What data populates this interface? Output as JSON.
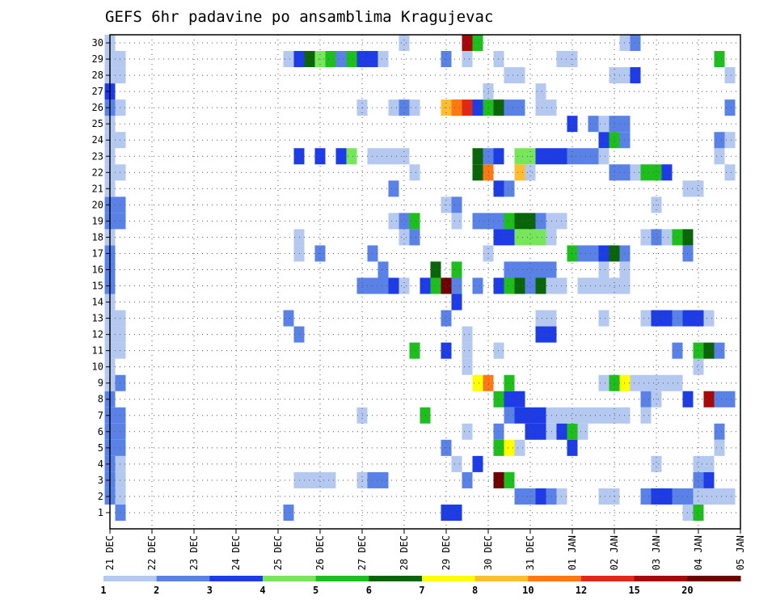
{
  "chart_data": {
    "type": "heatmap",
    "title": "GEFS 6hr padavine po ansamblima Kragujevac",
    "y_categories": [
      "1",
      "2",
      "3",
      "4",
      "5",
      "6",
      "7",
      "8",
      "9",
      "10",
      "11",
      "12",
      "13",
      "14",
      "15",
      "16",
      "17",
      "18",
      "19",
      "20",
      "21",
      "22",
      "23",
      "24",
      "25",
      "26",
      "27",
      "28",
      "29",
      "30"
    ],
    "x_tick_labels": [
      "21 DEC",
      "22 DEC",
      "23 DEC",
      "24 DEC",
      "25 DEC",
      "26 DEC",
      "27 DEC",
      "28 DEC",
      "29 DEC",
      "30 DEC",
      "31 DEC",
      "01 JAN",
      "02 JAN",
      "03 JAN",
      "04 JAN",
      "05 JAN"
    ],
    "steps_per_day": 4,
    "total_steps": 61,
    "grid": true,
    "legend_placement": "bottom",
    "legend": {
      "labels": [
        "1",
        "2",
        "3",
        "4",
        "5",
        "6",
        "7",
        "8",
        "10",
        "12",
        "15",
        "20"
      ],
      "colors": [
        "#b4c8f0",
        "#5a82e6",
        "#1e3ce6",
        "#78e65a",
        "#1ebe1e",
        "#0a640a",
        "#ffff00",
        "#ffbe32",
        "#ff7814",
        "#e12814",
        "#a50a0a",
        "#6e0000"
      ]
    },
    "cells": [
      [
        0,
        2,
        2
      ],
      [
        0,
        3,
        2
      ],
      [
        0,
        4,
        2
      ],
      [
        0,
        5,
        2
      ],
      [
        0,
        6,
        2
      ],
      [
        0,
        7,
        2
      ],
      [
        0,
        8,
        2
      ],
      [
        0,
        9,
        1
      ],
      [
        0,
        10,
        1
      ],
      [
        0,
        11,
        1
      ],
      [
        0,
        12,
        1
      ],
      [
        0,
        13,
        1
      ],
      [
        0,
        14,
        1
      ],
      [
        0,
        15,
        2
      ],
      [
        0,
        16,
        2
      ],
      [
        0,
        17,
        2
      ],
      [
        0,
        18,
        1
      ],
      [
        0,
        19,
        2
      ],
      [
        0,
        20,
        2
      ],
      [
        0,
        21,
        1
      ],
      [
        0,
        22,
        1
      ],
      [
        0,
        23,
        1
      ],
      [
        0,
        24,
        1
      ],
      [
        0,
        25,
        1
      ],
      [
        0,
        26,
        2
      ],
      [
        0,
        27,
        3
      ],
      [
        0,
        28,
        1
      ],
      [
        0,
        29,
        1
      ],
      [
        0,
        30,
        1
      ],
      [
        1,
        1,
        2
      ],
      [
        1,
        2,
        1
      ],
      [
        1,
        3,
        1
      ],
      [
        1,
        4,
        1
      ],
      [
        1,
        5,
        2
      ],
      [
        1,
        6,
        2
      ],
      [
        1,
        7,
        2
      ],
      [
        1,
        9,
        2
      ],
      [
        1,
        11,
        1
      ],
      [
        1,
        12,
        1
      ],
      [
        1,
        13,
        1
      ],
      [
        1,
        19,
        2
      ],
      [
        1,
        20,
        2
      ],
      [
        1,
        22,
        1
      ],
      [
        1,
        24,
        1
      ],
      [
        1,
        26,
        1
      ],
      [
        1,
        28,
        1
      ],
      [
        1,
        29,
        1
      ],
      [
        17,
        1,
        2
      ],
      [
        17,
        13,
        2
      ],
      [
        17,
        29,
        1
      ],
      [
        18,
        3,
        1
      ],
      [
        18,
        12,
        2
      ],
      [
        18,
        17,
        1
      ],
      [
        18,
        18,
        1
      ],
      [
        18,
        29,
        3
      ],
      [
        18,
        23,
        3
      ],
      [
        19,
        3,
        1
      ],
      [
        19,
        29,
        6
      ],
      [
        20,
        3,
        1
      ],
      [
        20,
        29,
        4
      ],
      [
        20,
        17,
        2
      ],
      [
        20,
        23,
        3
      ],
      [
        21,
        29,
        5
      ],
      [
        21,
        3,
        1
      ],
      [
        22,
        29,
        2
      ],
      [
        22,
        23,
        3
      ],
      [
        23,
        29,
        5
      ],
      [
        23,
        23,
        4
      ],
      [
        24,
        3,
        1
      ],
      [
        24,
        7,
        1
      ],
      [
        24,
        15,
        2
      ],
      [
        24,
        29,
        3
      ],
      [
        24,
        26,
        1
      ],
      [
        25,
        3,
        2
      ],
      [
        25,
        15,
        2
      ],
      [
        25,
        17,
        2
      ],
      [
        25,
        29,
        3
      ],
      [
        25,
        23,
        1
      ],
      [
        26,
        3,
        2
      ],
      [
        26,
        15,
        2
      ],
      [
        26,
        29,
        1
      ],
      [
        26,
        23,
        1
      ],
      [
        26,
        16,
        2
      ],
      [
        27,
        15,
        3
      ],
      [
        27,
        26,
        1
      ],
      [
        27,
        23,
        1
      ],
      [
        27,
        21,
        2
      ],
      [
        27,
        19,
        1
      ],
      [
        28,
        26,
        2
      ],
      [
        28,
        18,
        1
      ],
      [
        28,
        30,
        1
      ],
      [
        28,
        15,
        1
      ],
      [
        28,
        19,
        2
      ],
      [
        28,
        23,
        1
      ],
      [
        29,
        22,
        1
      ],
      [
        29,
        18,
        2
      ],
      [
        29,
        19,
        5
      ],
      [
        29,
        11,
        5
      ],
      [
        29,
        26,
        1
      ],
      [
        30,
        15,
        3
      ],
      [
        30,
        7,
        5
      ],
      [
        31,
        15,
        5
      ],
      [
        31,
        16,
        6
      ],
      [
        32,
        15,
        12
      ],
      [
        32,
        1,
        3
      ],
      [
        32,
        5,
        2
      ],
      [
        32,
        13,
        2
      ],
      [
        32,
        26,
        8
      ],
      [
        32,
        11,
        3
      ],
      [
        32,
        20,
        1
      ],
      [
        32,
        29,
        2
      ],
      [
        33,
        16,
        5
      ],
      [
        33,
        14,
        3
      ],
      [
        33,
        15,
        2
      ],
      [
        33,
        1,
        3
      ],
      [
        33,
        26,
        9
      ],
      [
        33,
        20,
        2
      ],
      [
        33,
        19,
        1
      ],
      [
        33,
        4,
        1
      ],
      [
        33,
        26,
        9
      ],
      [
        34,
        26,
        10
      ],
      [
        34,
        12,
        1
      ],
      [
        34,
        10,
        1
      ],
      [
        34,
        11,
        1
      ],
      [
        34,
        6,
        1
      ],
      [
        34,
        3,
        2
      ],
      [
        34,
        29,
        1
      ],
      [
        34,
        30,
        11
      ],
      [
        35,
        26,
        3
      ],
      [
        35,
        23,
        6
      ],
      [
        35,
        22,
        6
      ],
      [
        35,
        9,
        7
      ],
      [
        35,
        4,
        3
      ],
      [
        35,
        19,
        2
      ],
      [
        35,
        15,
        2
      ],
      [
        35,
        30,
        5
      ],
      [
        36,
        26,
        5
      ],
      [
        36,
        22,
        9
      ],
      [
        36,
        19,
        2
      ],
      [
        36,
        9,
        9
      ],
      [
        36,
        23,
        2
      ],
      [
        36,
        27,
        1
      ],
      [
        36,
        17,
        1
      ],
      [
        37,
        26,
        6
      ],
      [
        37,
        19,
        2
      ],
      [
        37,
        15,
        3
      ],
      [
        37,
        18,
        3
      ],
      [
        37,
        8,
        5
      ],
      [
        37,
        3,
        12
      ],
      [
        37,
        5,
        5
      ],
      [
        37,
        11,
        1
      ],
      [
        37,
        21,
        3
      ],
      [
        37,
        23,
        3
      ],
      [
        37,
        29,
        1
      ],
      [
        37,
        6,
        2
      ],
      [
        38,
        26,
        2
      ],
      [
        38,
        19,
        5
      ],
      [
        38,
        18,
        3
      ],
      [
        38,
        15,
        5
      ],
      [
        38,
        16,
        2
      ],
      [
        38,
        8,
        3
      ],
      [
        38,
        5,
        7
      ],
      [
        38,
        3,
        5
      ],
      [
        38,
        9,
        5
      ],
      [
        38,
        21,
        2
      ],
      [
        38,
        7,
        2
      ],
      [
        38,
        28,
        1
      ],
      [
        39,
        26,
        2
      ],
      [
        39,
        19,
        6
      ],
      [
        39,
        18,
        4
      ],
      [
        39,
        15,
        6
      ],
      [
        39,
        16,
        2
      ],
      [
        39,
        8,
        3
      ],
      [
        39,
        5,
        1
      ],
      [
        39,
        7,
        3
      ],
      [
        39,
        23,
        4
      ],
      [
        39,
        22,
        8
      ],
      [
        39,
        28,
        1
      ],
      [
        39,
        2,
        2
      ],
      [
        40,
        19,
        6
      ],
      [
        40,
        18,
        4
      ],
      [
        40,
        15,
        2
      ],
      [
        40,
        16,
        2
      ],
      [
        40,
        7,
        3
      ],
      [
        40,
        23,
        4
      ],
      [
        40,
        6,
        3
      ],
      [
        40,
        22,
        1
      ],
      [
        40,
        2,
        2
      ],
      [
        41,
        19,
        2
      ],
      [
        41,
        18,
        4
      ],
      [
        41,
        15,
        6
      ],
      [
        41,
        16,
        2
      ],
      [
        41,
        6,
        3
      ],
      [
        41,
        7,
        3
      ],
      [
        41,
        27,
        1
      ],
      [
        41,
        26,
        1
      ],
      [
        41,
        23,
        3
      ],
      [
        41,
        2,
        3
      ],
      [
        41,
        13,
        1
      ],
      [
        41,
        12,
        3
      ],
      [
        42,
        19,
        1
      ],
      [
        42,
        18,
        1
      ],
      [
        42,
        15,
        1
      ],
      [
        42,
        16,
        2
      ],
      [
        42,
        7,
        1
      ],
      [
        42,
        23,
        3
      ],
      [
        42,
        2,
        2
      ],
      [
        42,
        6,
        1
      ],
      [
        42,
        13,
        1
      ],
      [
        42,
        12,
        3
      ],
      [
        42,
        26,
        1
      ],
      [
        43,
        19,
        1
      ],
      [
        43,
        15,
        1
      ],
      [
        43,
        7,
        1
      ],
      [
        43,
        6,
        3
      ],
      [
        43,
        23,
        3
      ],
      [
        43,
        29,
        1
      ],
      [
        43,
        2,
        1
      ],
      [
        44,
        17,
        5
      ],
      [
        44,
        6,
        5
      ],
      [
        44,
        7,
        1
      ],
      [
        44,
        25,
        3
      ],
      [
        44,
        23,
        2
      ],
      [
        44,
        29,
        1
      ],
      [
        44,
        5,
        3
      ],
      [
        45,
        17,
        2
      ],
      [
        45,
        7,
        1
      ],
      [
        45,
        6,
        1
      ],
      [
        45,
        15,
        1
      ],
      [
        45,
        23,
        2
      ],
      [
        46,
        17,
        2
      ],
      [
        46,
        15,
        1
      ],
      [
        46,
        7,
        1
      ],
      [
        46,
        25,
        2
      ],
      [
        46,
        23,
        2
      ],
      [
        47,
        17,
        3
      ],
      [
        47,
        16,
        1
      ],
      [
        47,
        15,
        1
      ],
      [
        47,
        7,
        1
      ],
      [
        47,
        24,
        3
      ],
      [
        47,
        25,
        1
      ],
      [
        47,
        9,
        1
      ],
      [
        47,
        13,
        1
      ],
      [
        47,
        23,
        1
      ],
      [
        47,
        2,
        1
      ],
      [
        48,
        17,
        6
      ],
      [
        48,
        15,
        1
      ],
      [
        48,
        7,
        1
      ],
      [
        48,
        24,
        5
      ],
      [
        48,
        25,
        2
      ],
      [
        48,
        9,
        5
      ],
      [
        48,
        2,
        1
      ],
      [
        48,
        28,
        1
      ],
      [
        48,
        22,
        2
      ],
      [
        49,
        17,
        2
      ],
      [
        49,
        16,
        1
      ],
      [
        49,
        15,
        1
      ],
      [
        49,
        7,
        1
      ],
      [
        49,
        24,
        2
      ],
      [
        49,
        25,
        2
      ],
      [
        49,
        9,
        7
      ],
      [
        49,
        22,
        2
      ],
      [
        49,
        28,
        1
      ],
      [
        49,
        30,
        1
      ],
      [
        50,
        9,
        1
      ],
      [
        50,
        28,
        3
      ],
      [
        50,
        22,
        1
      ],
      [
        50,
        30,
        2
      ],
      [
        51,
        8,
        2
      ],
      [
        51,
        7,
        1
      ],
      [
        51,
        9,
        1
      ],
      [
        51,
        18,
        1
      ],
      [
        51,
        22,
        5
      ],
      [
        51,
        2,
        2
      ],
      [
        51,
        13,
        1
      ],
      [
        52,
        8,
        1
      ],
      [
        52,
        2,
        3
      ],
      [
        52,
        13,
        3
      ],
      [
        52,
        18,
        2
      ],
      [
        52,
        20,
        1
      ],
      [
        52,
        22,
        5
      ],
      [
        52,
        9,
        1
      ],
      [
        52,
        4,
        1
      ],
      [
        53,
        2,
        3
      ],
      [
        53,
        13,
        3
      ],
      [
        53,
        18,
        1
      ],
      [
        53,
        22,
        3
      ],
      [
        53,
        9,
        1
      ],
      [
        54,
        2,
        2
      ],
      [
        54,
        13,
        2
      ],
      [
        54,
        18,
        5
      ],
      [
        54,
        9,
        1
      ],
      [
        54,
        11,
        2
      ],
      [
        55,
        2,
        2
      ],
      [
        55,
        8,
        3
      ],
      [
        55,
        13,
        3
      ],
      [
        55,
        18,
        6
      ],
      [
        55,
        17,
        2
      ],
      [
        55,
        21,
        1
      ],
      [
        55,
        1,
        1
      ],
      [
        56,
        1,
        5
      ],
      [
        56,
        2,
        1
      ],
      [
        56,
        3,
        2
      ],
      [
        56,
        4,
        1
      ],
      [
        56,
        11,
        5
      ],
      [
        56,
        13,
        3
      ],
      [
        56,
        10,
        1
      ],
      [
        56,
        21,
        1
      ],
      [
        57,
        11,
        6
      ],
      [
        57,
        3,
        3
      ],
      [
        57,
        4,
        1
      ],
      [
        57,
        8,
        11
      ],
      [
        57,
        2,
        1
      ],
      [
        57,
        13,
        1
      ],
      [
        58,
        2,
        1
      ],
      [
        58,
        8,
        2
      ],
      [
        58,
        11,
        2
      ],
      [
        58,
        6,
        2
      ],
      [
        58,
        5,
        1
      ],
      [
        58,
        23,
        1
      ],
      [
        58,
        24,
        2
      ],
      [
        58,
        29,
        5
      ],
      [
        59,
        2,
        1
      ],
      [
        59,
        8,
        2
      ],
      [
        59,
        26,
        2
      ],
      [
        59,
        24,
        1
      ],
      [
        59,
        22,
        1
      ],
      [
        59,
        28,
        1
      ]
    ]
  }
}
